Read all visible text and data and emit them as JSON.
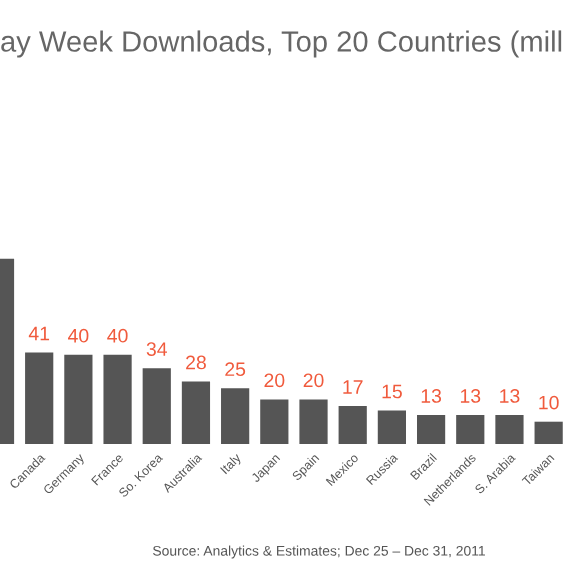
{
  "chart_data": {
    "type": "bar",
    "title": "ay Week Downloads, Top 20 Countries (mill",
    "categories": [
      null,
      "Canada",
      "Germany",
      "France",
      "So. Korea",
      "Australia",
      "Italy",
      "Japan",
      "Spain",
      "Mexico",
      "Russia",
      "Brazil",
      "Netherlands",
      "S. Arabia",
      "Taiwan"
    ],
    "values": [
      83,
      41,
      40,
      40,
      34,
      28,
      25,
      20,
      20,
      17,
      15,
      13,
      13,
      13,
      10
    ],
    "value_labels": [
      null,
      "41",
      "40",
      "40",
      "34",
      "28",
      "25",
      "20",
      "20",
      "17",
      "15",
      "13",
      "13",
      "13",
      "10"
    ],
    "color": "#555555",
    "annotations": [
      "Source: Analytics & Estimates; Dec 25 – Dec 31, 2011"
    ]
  }
}
